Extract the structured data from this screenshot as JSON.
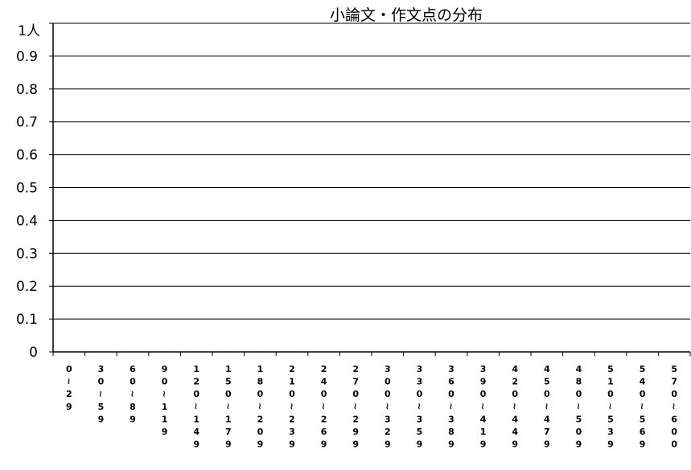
{
  "chart_data": {
    "type": "bar",
    "title": "小論文・作文点の分布",
    "ylabel": "人",
    "xlabel": "",
    "y_ticks": [
      "0",
      "0.1",
      "0.2",
      "0.3",
      "0.4",
      "0.5",
      "0.6",
      "0.7",
      "0.8",
      "0.9",
      "1"
    ],
    "ylim": [
      0,
      1
    ],
    "grid": true,
    "categories": [
      "0～29",
      "30～59",
      "60～89",
      "90～119",
      "120～149",
      "150～179",
      "180～209",
      "210～239",
      "240～269",
      "270～299",
      "300～329",
      "330～359",
      "360～389",
      "390～419",
      "420～449",
      "450～479",
      "480～509",
      "510～539",
      "540～569",
      "570～600"
    ],
    "series": [
      {
        "values": [
          0,
          0,
          0,
          0,
          0,
          0,
          0,
          0,
          0,
          0,
          0,
          0,
          0,
          0,
          0,
          0,
          0,
          0,
          0,
          0
        ]
      }
    ],
    "colors": {
      "axis": "#000000",
      "gridline": "#000000",
      "bar": "#000080"
    }
  }
}
